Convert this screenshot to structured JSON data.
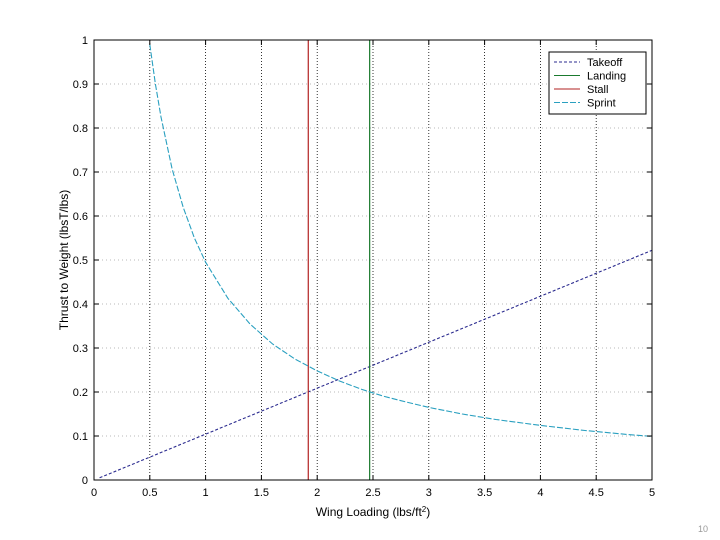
{
  "chart_data": {
    "type": "line",
    "title": "",
    "xlabel": "Wing Loading (lbs/ft",
    "xlabel_sup": "2",
    "xlabel_close": ")",
    "ylabel": "Thrust to Weight (lbsT/lbs)",
    "xlim": [
      0,
      5
    ],
    "ylim": [
      0,
      1
    ],
    "x_ticks": [
      0,
      0.5,
      1,
      1.5,
      2,
      2.5,
      3,
      3.5,
      4,
      4.5,
      5
    ],
    "x_tick_labels": [
      "0",
      "0.5",
      "1",
      "1.5",
      "2",
      "2.5",
      "3",
      "3.5",
      "4",
      "4.5",
      "5"
    ],
    "y_ticks": [
      0,
      0.1,
      0.2,
      0.3,
      0.4,
      0.5,
      0.6,
      0.7,
      0.8,
      0.9,
      1
    ],
    "y_tick_labels": [
      "0",
      "0.1",
      "0.2",
      "0.3",
      "0.4",
      "0.5",
      "0.6",
      "0.7",
      "0.8",
      "0.9",
      "1"
    ],
    "grid": true,
    "legend_position": "top-right",
    "series": [
      {
        "name": "Takeoff",
        "kind": "line",
        "color": "#2b2b8f",
        "dash": "3,2",
        "x": [
          0.05,
          5
        ],
        "y": [
          0.005,
          0.522
        ]
      },
      {
        "name": "Landing",
        "kind": "vline",
        "color": "#1a7a2e",
        "x_value": 2.47
      },
      {
        "name": "Stall",
        "kind": "vline",
        "color": "#b22222",
        "x_value": 1.92
      },
      {
        "name": "Sprint",
        "kind": "curve",
        "color": "#2aa0c0",
        "dash": "6,2",
        "x": [
          0.5,
          0.55,
          0.6,
          0.7,
          0.8,
          0.9,
          1.0,
          1.2,
          1.4,
          1.6,
          1.8,
          2.0,
          2.2,
          2.4,
          2.6,
          2.8,
          3.0,
          3.3,
          3.6,
          4.0,
          4.4,
          4.8,
          5.0
        ],
        "y": [
          0.99,
          0.9,
          0.825,
          0.707,
          0.619,
          0.55,
          0.495,
          0.413,
          0.354,
          0.309,
          0.275,
          0.248,
          0.225,
          0.206,
          0.19,
          0.177,
          0.165,
          0.15,
          0.1375,
          0.124,
          0.1125,
          0.103,
          0.099
        ]
      }
    ]
  },
  "page": {
    "number": "10"
  }
}
